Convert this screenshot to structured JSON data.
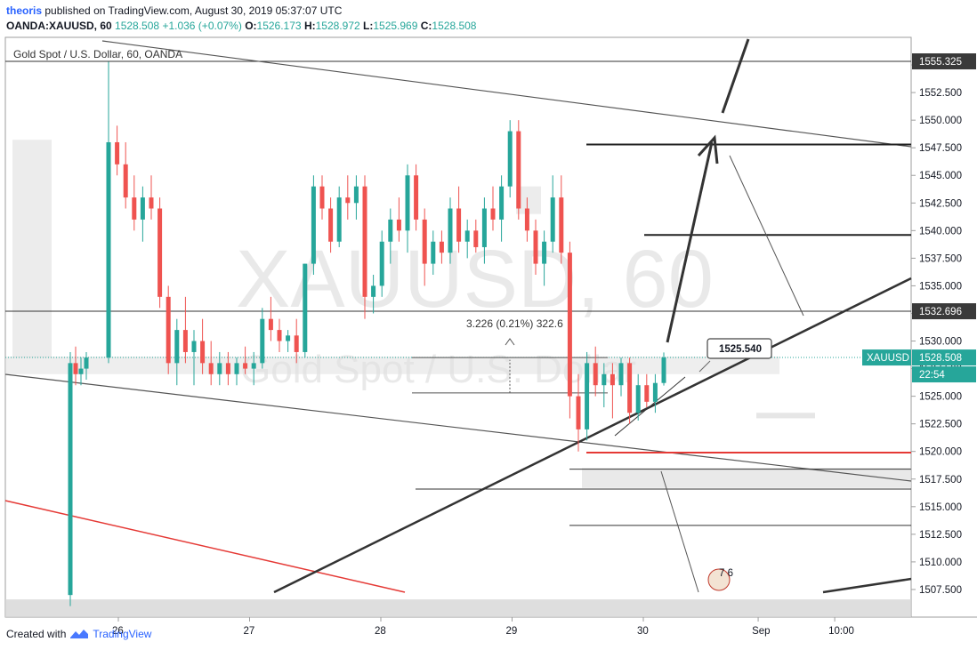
{
  "header": {
    "author": "theoris",
    "published": "published on TradingView.com, August 30, 2019 05:37:07 UTC",
    "symbol": "OANDA:XAUUSD, 60",
    "last": "1528.508",
    "change": "+1.036 (+0.07%)",
    "o_label": "O:",
    "o_value": "1526.173",
    "h_label": "H:",
    "h_value": "1528.972",
    "l_label": "L:",
    "l_value": "1525.969",
    "c_label": "C:",
    "c_value": "1528.508"
  },
  "footer": {
    "created_with": "Created with",
    "brand": "TradingView"
  },
  "chart_data": {
    "type": "candlestick",
    "title": "Gold Spot / U.S. Dollar, 60, OANDA",
    "watermark_symbol": "XAUUSD, 60",
    "watermark_name": "Gold Spot / U.S. Dollar",
    "ylim": [
      1505.0,
      1557.5
    ],
    "y_ticks": [
      "1507.500",
      "1510.000",
      "1512.500",
      "1515.000",
      "1517.500",
      "1520.000",
      "1522.500",
      "1525.000",
      "1527.500",
      "1530.000",
      "1532.500",
      "1535.000",
      "1537.500",
      "1540.000",
      "1542.500",
      "1545.000",
      "1547.500",
      "1550.000",
      "1552.500",
      "1555.000"
    ],
    "x_ticks": [
      {
        "label": "26",
        "t": 0.0
      },
      {
        "label": "27",
        "t": 24
      },
      {
        "label": "28",
        "t": 48
      },
      {
        "label": "29",
        "t": 72
      },
      {
        "label": "30",
        "t": 96
      },
      {
        "label": "Sep",
        "t": 117
      },
      {
        "label": "10:00",
        "t": 131
      }
    ],
    "x_range_hours": [
      -21,
      144
    ],
    "price_labels": [
      {
        "text": "1555.325",
        "price": 1555.325,
        "style": "dark"
      },
      {
        "text": "1532.696",
        "price": 1532.696,
        "style": "dark"
      },
      {
        "text": "XAUUSD",
        "price": 1528.508,
        "style": "teal-tag"
      },
      {
        "text": "1528.508",
        "price": 1528.508,
        "style": "teal"
      },
      {
        "text": "22:54",
        "price": 1526.7,
        "style": "teal"
      }
    ],
    "callout": "1525.540",
    "measure_label": "3.226 (0.21%) 322.6",
    "badge": "7 6",
    "candles_ohlc_hourly": [
      [
        1507.0,
        1529.0,
        1506.0,
        1528.0
      ],
      [
        1528.0,
        1529.5,
        1526.0,
        1527.0
      ],
      [
        1527.0,
        1528.5,
        1526.0,
        1527.5
      ],
      [
        1527.5,
        1529.0,
        1526.5,
        1528.5
      ],
      [
        1528.5,
        1555.3,
        1528.0,
        1548.0
      ],
      [
        1548.0,
        1549.5,
        1545.0,
        1546.0
      ],
      [
        1546.0,
        1548.0,
        1542.0,
        1543.0
      ],
      [
        1543.0,
        1545.0,
        1540.0,
        1541.0
      ],
      [
        1541.0,
        1544.0,
        1539.0,
        1543.0
      ],
      [
        1543.0,
        1545.0,
        1541.0,
        1542.0
      ],
      [
        1542.0,
        1543.0,
        1533.0,
        1534.0
      ],
      [
        1534.0,
        1535.0,
        1527.0,
        1528.0
      ],
      [
        1528.0,
        1532.0,
        1526.0,
        1531.0
      ],
      [
        1531.0,
        1534.0,
        1528.0,
        1529.0
      ],
      [
        1529.0,
        1531.0,
        1526.0,
        1530.0
      ],
      [
        1530.0,
        1532.0,
        1527.0,
        1528.0
      ],
      [
        1528.0,
        1530.0,
        1526.0,
        1527.0
      ],
      [
        1527.0,
        1529.0,
        1526.0,
        1528.0
      ],
      [
        1528.0,
        1529.0,
        1526.0,
        1527.0
      ],
      [
        1527.0,
        1528.5,
        1526.0,
        1528.0
      ],
      [
        1528.0,
        1529.5,
        1527.0,
        1527.5
      ],
      [
        1527.5,
        1529.0,
        1526.0,
        1528.0
      ],
      [
        1528.0,
        1533.0,
        1527.5,
        1532.0
      ],
      [
        1532.0,
        1534.0,
        1530.0,
        1531.0
      ],
      [
        1531.0,
        1532.0,
        1529.0,
        1530.0
      ],
      [
        1530.0,
        1531.0,
        1529.0,
        1530.5
      ],
      [
        1530.5,
        1532.0,
        1528.0,
        1529.0
      ],
      [
        1529.0,
        1537.0,
        1528.5,
        1537.0
      ],
      [
        1537.0,
        1545.0,
        1536.0,
        1544.0
      ],
      [
        1544.0,
        1545.0,
        1541.0,
        1542.0
      ],
      [
        1542.0,
        1543.0,
        1538.0,
        1539.0
      ],
      [
        1539.0,
        1544.0,
        1538.5,
        1543.0
      ],
      [
        1543.0,
        1545.0,
        1541.0,
        1542.5
      ],
      [
        1542.5,
        1545.0,
        1541.0,
        1544.0
      ],
      [
        1544.0,
        1545.0,
        1532.0,
        1534.0
      ],
      [
        1534.0,
        1536.0,
        1532.5,
        1535.0
      ],
      [
        1535.0,
        1540.0,
        1534.0,
        1539.0
      ],
      [
        1539.0,
        1542.0,
        1537.0,
        1541.0
      ],
      [
        1541.0,
        1543.0,
        1539.0,
        1540.0
      ],
      [
        1540.0,
        1546.0,
        1538.0,
        1545.0
      ],
      [
        1545.0,
        1546.0,
        1540.0,
        1541.0
      ],
      [
        1541.0,
        1542.0,
        1535.0,
        1537.0
      ],
      [
        1537.0,
        1540.0,
        1536.0,
        1539.0
      ],
      [
        1539.0,
        1540.0,
        1537.0,
        1538.0
      ],
      [
        1538.0,
        1543.0,
        1537.0,
        1542.0
      ],
      [
        1542.0,
        1544.0,
        1538.0,
        1539.0
      ],
      [
        1539.0,
        1541.0,
        1537.5,
        1540.0
      ],
      [
        1540.0,
        1541.0,
        1538.0,
        1538.5
      ],
      [
        1538.5,
        1543.0,
        1537.0,
        1542.0
      ],
      [
        1542.0,
        1544.0,
        1540.0,
        1541.0
      ],
      [
        1541.0,
        1545.0,
        1539.0,
        1544.0
      ],
      [
        1544.0,
        1550.0,
        1543.0,
        1549.0
      ],
      [
        1549.0,
        1550.0,
        1541.0,
        1542.0
      ],
      [
        1542.0,
        1543.0,
        1539.0,
        1540.0
      ],
      [
        1540.0,
        1541.0,
        1536.0,
        1537.0
      ],
      [
        1537.0,
        1540.0,
        1535.0,
        1539.0
      ],
      [
        1539.0,
        1545.0,
        1538.0,
        1543.0
      ],
      [
        1543.0,
        1545.0,
        1537.0,
        1538.0
      ],
      [
        1538.0,
        1539.0,
        1523.0,
        1525.0
      ],
      [
        1525.0,
        1527.0,
        1520.0,
        1522.0
      ],
      [
        1522.0,
        1529.0,
        1521.0,
        1528.0
      ],
      [
        1528.0,
        1529.5,
        1525.0,
        1526.0
      ],
      [
        1526.0,
        1528.0,
        1524.0,
        1527.0
      ],
      [
        1527.0,
        1528.0,
        1523.0,
        1526.0
      ],
      [
        1526.0,
        1528.5,
        1525.0,
        1528.0
      ],
      [
        1528.0,
        1528.5,
        1522.5,
        1523.5
      ],
      [
        1523.5,
        1527.0,
        1522.8,
        1526.0
      ],
      [
        1526.0,
        1527.0,
        1524.0,
        1524.5
      ],
      [
        1524.5,
        1527.0,
        1523.5,
        1526.2
      ],
      [
        1526.2,
        1528.97,
        1525.97,
        1528.508
      ]
    ]
  }
}
